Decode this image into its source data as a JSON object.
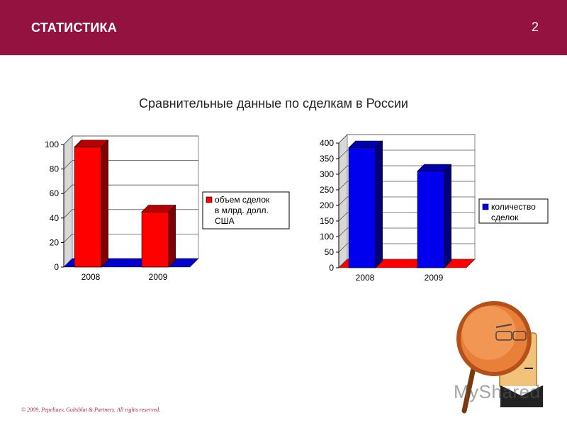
{
  "header": {
    "title": "СТАТИСТИКА",
    "page_number": "2",
    "color": "#93123f"
  },
  "subtitle": "Сравнительные данные по сделкам в России",
  "chart_data": [
    {
      "type": "bar",
      "categories": [
        "2008",
        "2009"
      ],
      "series": [
        {
          "name": "объем сделок в млрд. долл. США",
          "values": [
            98,
            45
          ],
          "color": "#ff0000"
        }
      ],
      "ylim": [
        0,
        100
      ],
      "yticks": [
        0,
        20,
        40,
        60,
        80,
        100
      ],
      "legend_lines": [
        "объем сделок",
        "в млрд. долл.",
        "США"
      ],
      "legend_position": "right",
      "grid": true,
      "floor_color": "#0000cc"
    },
    {
      "type": "bar",
      "categories": [
        "2008",
        "2009"
      ],
      "series": [
        {
          "name": "количество сделок",
          "values": [
            385,
            310
          ],
          "color": "#0000ee"
        }
      ],
      "ylim": [
        0,
        400
      ],
      "yticks": [
        0,
        50,
        100,
        150,
        200,
        250,
        300,
        350,
        400
      ],
      "legend_lines": [
        "количество",
        "сделок"
      ],
      "legend_position": "right",
      "grid": true,
      "floor_color": "#ff0000"
    }
  ],
  "footer": "© 2009, Pepeliaev, Goltsblat & Partners. All rights reserved.",
  "watermark": "MyShared",
  "illustration": "magnifier-icon"
}
